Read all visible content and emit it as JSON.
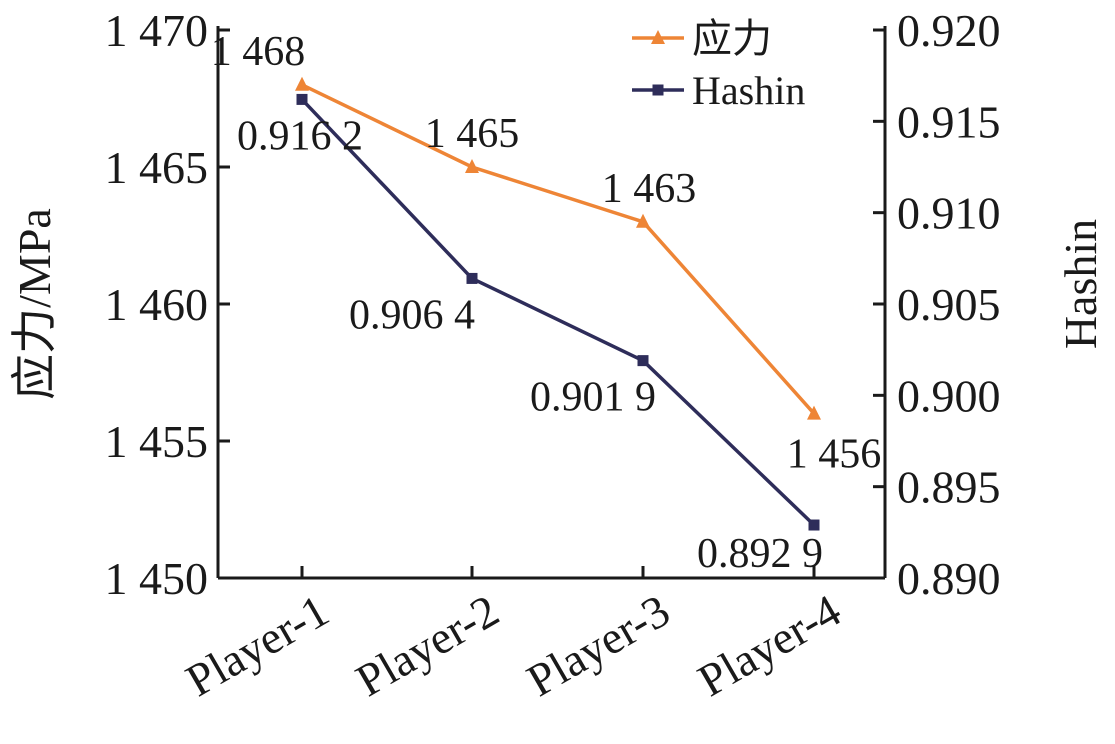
{
  "chart_data": {
    "type": "line",
    "categories": [
      "Player-1",
      "Player-2",
      "Player-3",
      "Player-4"
    ],
    "y_left": {
      "label": "应力/MPa",
      "ylim": [
        1450,
        1470
      ],
      "ticks": [
        1450,
        1455,
        1460,
        1465,
        1470
      ],
      "tick_labels": [
        "1 450",
        "1 455",
        "1 460",
        "1 465",
        "1 470"
      ]
    },
    "y_right": {
      "label": "Hashin",
      "ylim": [
        0.89,
        0.92
      ],
      "ticks": [
        0.89,
        0.895,
        0.9,
        0.905,
        0.91,
        0.915,
        0.92
      ],
      "tick_labels": [
        "0.890",
        "0.895",
        "0.900",
        "0.905",
        "0.910",
        "0.915",
        "0.920"
      ]
    },
    "series": [
      {
        "name": "应力",
        "axis": "left",
        "color": "#EE8536",
        "marker": "triangle",
        "values": [
          1468,
          1465,
          1463,
          1456
        ],
        "labels": [
          "1 468",
          "1 465",
          "1 463",
          "1 456"
        ]
      },
      {
        "name": "Hashin",
        "axis": "right",
        "color": "#2E2D5A",
        "marker": "square",
        "values": [
          0.9162,
          0.9064,
          0.9019,
          0.8929
        ],
        "labels": [
          "0.916 2",
          "0.906 4",
          "0.901 9",
          "0.892 9"
        ]
      }
    ],
    "legend_position": "top-right",
    "grid": false
  }
}
